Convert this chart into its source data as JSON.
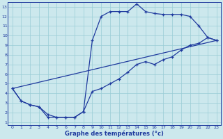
{
  "xlabel": "Graphe des températures (°c)",
  "bg_color": "#cce8ed",
  "line_color": "#1f3a9e",
  "grid_color": "#99ccd6",
  "xlim": [
    0,
    23
  ],
  "ylim": [
    1,
    13
  ],
  "xticks": [
    0,
    1,
    2,
    3,
    4,
    5,
    6,
    7,
    8,
    9,
    10,
    11,
    12,
    13,
    14,
    15,
    16,
    17,
    18,
    19,
    20,
    21,
    22,
    23
  ],
  "yticks": [
    1,
    2,
    3,
    4,
    5,
    6,
    7,
    8,
    9,
    10,
    11,
    12,
    13
  ],
  "curve1_x": [
    0,
    1,
    2,
    3,
    4,
    5,
    6,
    7,
    8,
    9,
    10,
    11,
    12,
    13,
    14,
    15,
    16,
    17,
    18,
    19,
    20,
    21,
    22,
    23
  ],
  "curve1_y": [
    4.5,
    3.2,
    2.8,
    2.6,
    1.5,
    1.5,
    1.5,
    1.5,
    2.1,
    9.5,
    12.0,
    12.5,
    12.5,
    12.5,
    13.3,
    12.5,
    12.3,
    12.2,
    12.2,
    12.2,
    12.0,
    11.0,
    9.8,
    9.5
  ],
  "curve2_x": [
    0,
    1,
    2,
    3,
    4,
    5,
    6,
    7,
    8,
    9,
    10,
    11,
    12,
    13,
    14,
    15,
    16,
    17,
    18,
    19,
    20,
    21,
    22,
    23
  ],
  "curve2_y": [
    4.5,
    3.2,
    2.8,
    2.6,
    1.8,
    1.5,
    1.5,
    1.5,
    2.1,
    4.2,
    4.5,
    5.0,
    5.5,
    6.2,
    7.0,
    7.3,
    7.0,
    7.5,
    7.8,
    8.5,
    9.0,
    9.2,
    9.8,
    9.5
  ],
  "curve3_x": [
    0,
    23
  ],
  "curve3_y": [
    4.5,
    9.5
  ]
}
